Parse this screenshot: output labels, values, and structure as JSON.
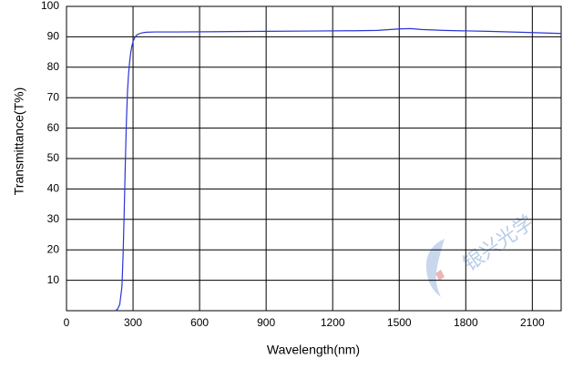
{
  "chart_data": {
    "type": "line",
    "xlabel": "Wavelength(nm)",
    "ylabel": "Transmittance(T%)",
    "watermark": "银兴光学",
    "x": [
      220,
      230,
      240,
      250,
      255,
      260,
      265,
      270,
      275,
      280,
      285,
      290,
      295,
      300,
      310,
      320,
      340,
      360,
      400,
      500,
      700,
      900,
      1100,
      1300,
      1400,
      1500,
      1550,
      1600,
      1700,
      1900,
      2100,
      2230
    ],
    "values": [
      0,
      0.5,
      2,
      8,
      18,
      32,
      48,
      62,
      72,
      78,
      82,
      85,
      87,
      88.5,
      90,
      90.8,
      91.3,
      91.5,
      91.6,
      91.6,
      91.7,
      91.8,
      91.9,
      92,
      92.1,
      92.6,
      92.7,
      92.4,
      92.1,
      91.8,
      91.4,
      91.1
    ],
    "color": "#2b35d6",
    "xlim": [
      0,
      2230
    ],
    "xticks": [
      0,
      300,
      600,
      900,
      1200,
      1500,
      1800,
      2100
    ],
    "ylim": [
      0,
      100
    ],
    "yticks": [
      10,
      20,
      30,
      40,
      50,
      60,
      70,
      80,
      90,
      100
    ],
    "grid": true
  }
}
